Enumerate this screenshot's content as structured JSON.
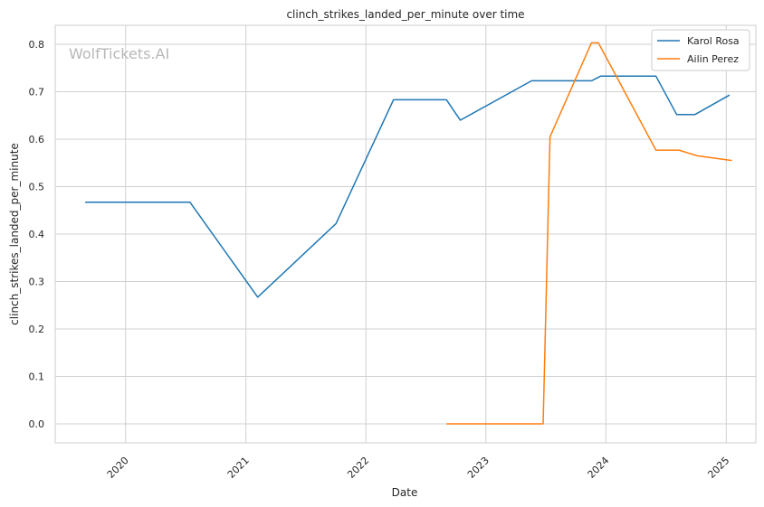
{
  "chart_data": {
    "type": "line",
    "title": "clinch_strikes_landed_per_minute over time",
    "xlabel": "Date",
    "ylabel": "clinch_strikes_landed_per_minute",
    "watermark": "WolfTickets.AI",
    "xlim": [
      "2019-06-01",
      "2025-04-01"
    ],
    "ylim": [
      -0.04,
      0.84
    ],
    "x_ticks": [
      "2020",
      "2021",
      "2022",
      "2023",
      "2024",
      "2025"
    ],
    "y_ticks": [
      "0.0",
      "0.1",
      "0.2",
      "0.3",
      "0.4",
      "0.5",
      "0.6",
      "0.7",
      "0.8"
    ],
    "grid": true,
    "legend_position": "top-right",
    "series": [
      {
        "name": "Karol Rosa",
        "color": "#1f77b4",
        "points": [
          [
            "2019-08-31",
            0.467
          ],
          [
            "2020-07-15",
            0.467
          ],
          [
            "2021-02-06",
            0.267
          ],
          [
            "2021-10-02",
            0.422
          ],
          [
            "2022-03-26",
            0.683
          ],
          [
            "2022-09-03",
            0.683
          ],
          [
            "2022-10-15",
            0.64
          ],
          [
            "2023-05-20",
            0.723
          ],
          [
            "2023-11-18",
            0.723
          ],
          [
            "2023-12-16",
            0.733
          ],
          [
            "2024-06-01",
            0.733
          ],
          [
            "2024-08-03",
            0.652
          ],
          [
            "2024-09-28",
            0.652
          ],
          [
            "2025-01-11",
            0.693
          ]
        ]
      },
      {
        "name": "Ailin Perez",
        "color": "#ff7f0e",
        "points": [
          [
            "2022-09-03",
            0.0
          ],
          [
            "2023-06-24",
            0.0
          ],
          [
            "2023-07-15",
            0.605
          ],
          [
            "2023-11-18",
            0.803
          ],
          [
            "2023-12-09",
            0.803
          ],
          [
            "2024-06-01",
            0.577
          ],
          [
            "2024-08-10",
            0.577
          ],
          [
            "2024-10-05",
            0.565
          ],
          [
            "2025-01-18",
            0.555
          ]
        ]
      }
    ]
  }
}
